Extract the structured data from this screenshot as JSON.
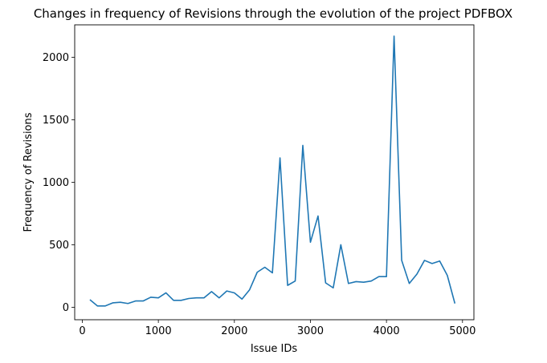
{
  "chart_data": {
    "type": "line",
    "title": "Changes in frequency of Revisions through the evolution of the project PDFBOX",
    "xlabel": "Issue IDs",
    "ylabel": "Frequency of Revisions",
    "xlim": [
      -100,
      5150
    ],
    "ylim": [
      -100,
      2260
    ],
    "xticks": [
      0,
      1000,
      2000,
      3000,
      4000,
      5000
    ],
    "yticks": [
      0,
      500,
      1000,
      1500,
      2000
    ],
    "xtick_labels": [
      "0",
      "1000",
      "2000",
      "3000",
      "4000",
      "5000"
    ],
    "ytick_labels": [
      "0",
      "500",
      "1000",
      "1500",
      "2000"
    ],
    "grid": false,
    "series": [
      {
        "color": "#1f77b4",
        "x": [
          100,
          200,
          300,
          400,
          500,
          600,
          700,
          800,
          900,
          1000,
          1100,
          1200,
          1300,
          1400,
          1500,
          1600,
          1700,
          1800,
          1900,
          2000,
          2100,
          2200,
          2300,
          2400,
          2500,
          2600,
          2700,
          2800,
          2900,
          3000,
          3100,
          3200,
          3300,
          3400,
          3500,
          3600,
          3700,
          3800,
          3900,
          4000,
          4100,
          4200,
          4300,
          4400,
          4500,
          4600,
          4700,
          4800,
          4900
        ],
        "y": [
          60,
          10,
          10,
          35,
          40,
          30,
          50,
          50,
          80,
          75,
          115,
          55,
          55,
          70,
          75,
          75,
          125,
          75,
          130,
          115,
          65,
          140,
          280,
          320,
          275,
          1195,
          175,
          210,
          1295,
          520,
          730,
          195,
          155,
          500,
          190,
          205,
          200,
          210,
          245,
          245,
          2170,
          375,
          190,
          265,
          375,
          350,
          370,
          255,
          30
        ]
      }
    ]
  }
}
